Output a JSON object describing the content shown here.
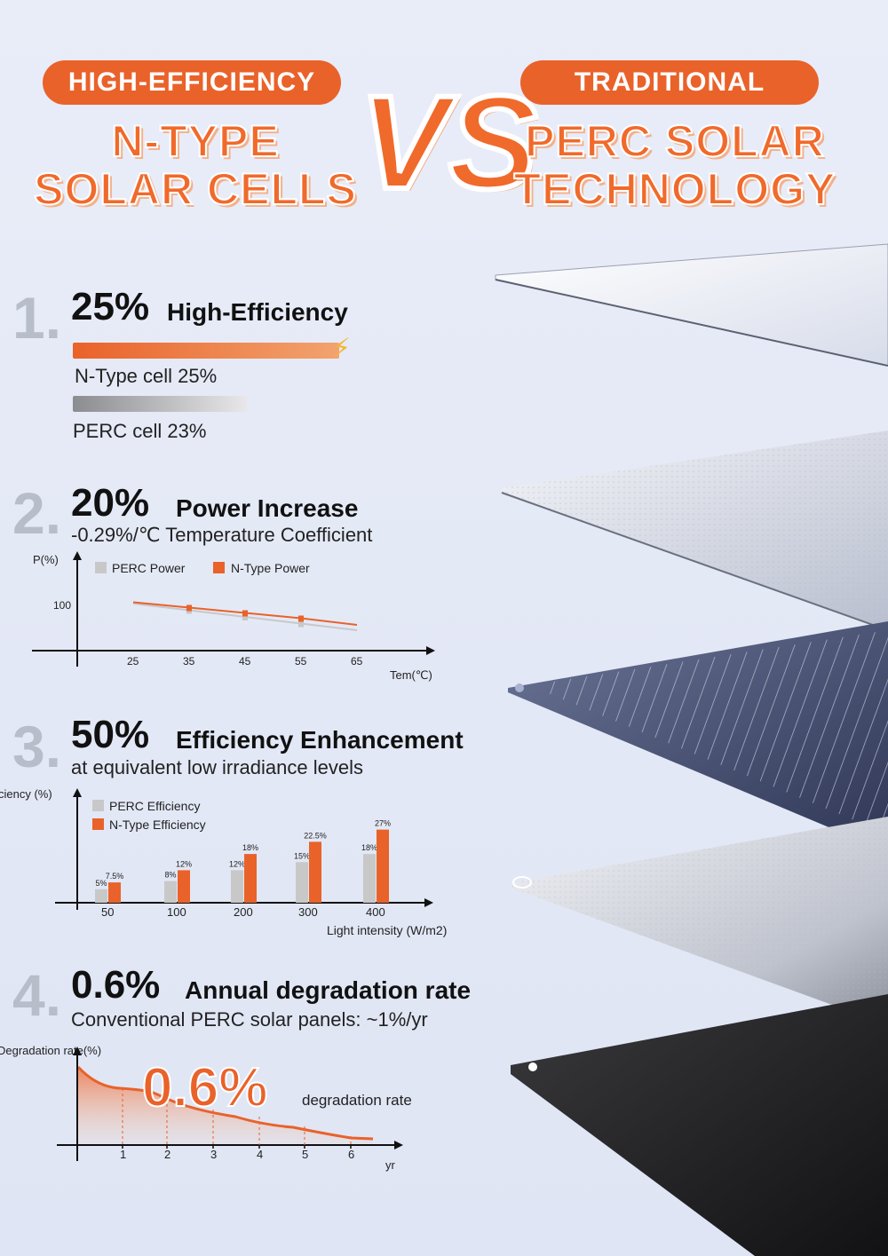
{
  "header": {
    "left_pill": "HIGH-EFFICIENCY",
    "left_title_line1": "N-TYPE",
    "left_title_line2": "SOLAR CELLS",
    "vs": "VS",
    "right_pill": "TRADITIONAL",
    "right_title_line1": "PERC SOLAR",
    "right_title_line2": "TECHNOLOGY"
  },
  "colors": {
    "accent": "#e9622a",
    "perc_gray": "#c8c8c8",
    "number_gray": "#b8bdca"
  },
  "section1": {
    "number": "1.",
    "value": "25%",
    "title": "High-Efficiency",
    "ntype_label": "N-Type cell 25%",
    "perc_label": "PERC cell 23%",
    "ntype_value": 25,
    "perc_value": 23,
    "icon": "lightning-icon"
  },
  "section2": {
    "number": "2.",
    "value": "20%",
    "title": "Power Increase",
    "subtitle": "-0.29%/℃ Temperature Coefficient",
    "chart_data": {
      "type": "line",
      "ylabel": "P(%)",
      "xlabel": "Tem(℃)",
      "y_tick": "100",
      "x": [
        25,
        35,
        45,
        55,
        65
      ],
      "x_ticks": [
        "25",
        "35",
        "45",
        "55",
        "65"
      ],
      "series": [
        {
          "name": "PERC Power",
          "values": [
            100,
            97.5,
            95,
            92.5,
            90
          ]
        },
        {
          "name": "N-Type Power",
          "values": [
            100.5,
            98.5,
            96.5,
            94.5,
            92
          ]
        }
      ]
    }
  },
  "section3": {
    "number": "3.",
    "value": "50%",
    "title": "Efficiency Enhancement",
    "subtitle": "at equivalent low irradiance levels",
    "chart_data": {
      "type": "bar",
      "ylabel": "ciency (%)",
      "xlabel": "Light intensity (W/m2)",
      "categories": [
        "50",
        "100",
        "200",
        "300",
        "400"
      ],
      "series": [
        {
          "name": "PERC Efficiency",
          "values": [
            5,
            8,
            12,
            15,
            18
          ],
          "labels": [
            "5%",
            "8%",
            "12%",
            "15%",
            "18%"
          ]
        },
        {
          "name": "N-Type Efficiency",
          "values": [
            7.5,
            12,
            18,
            22.5,
            27
          ],
          "labels": [
            "7.5%",
            "12%",
            "18%",
            "22.5%",
            "27%"
          ]
        }
      ]
    }
  },
  "section4": {
    "number": "4.",
    "value": "0.6%",
    "title": "Annual degradation rate",
    "subtitle": "Conventional PERC solar panels: ~1%/yr",
    "chart_data": {
      "type": "area",
      "ylabel": "Degradation rate(%)",
      "xlabel": "yr",
      "x_ticks": [
        "1",
        "2",
        "3",
        "4",
        "5",
        "6"
      ],
      "overlay_value": "0.6%",
      "overlay_label": "degradation rate"
    }
  }
}
